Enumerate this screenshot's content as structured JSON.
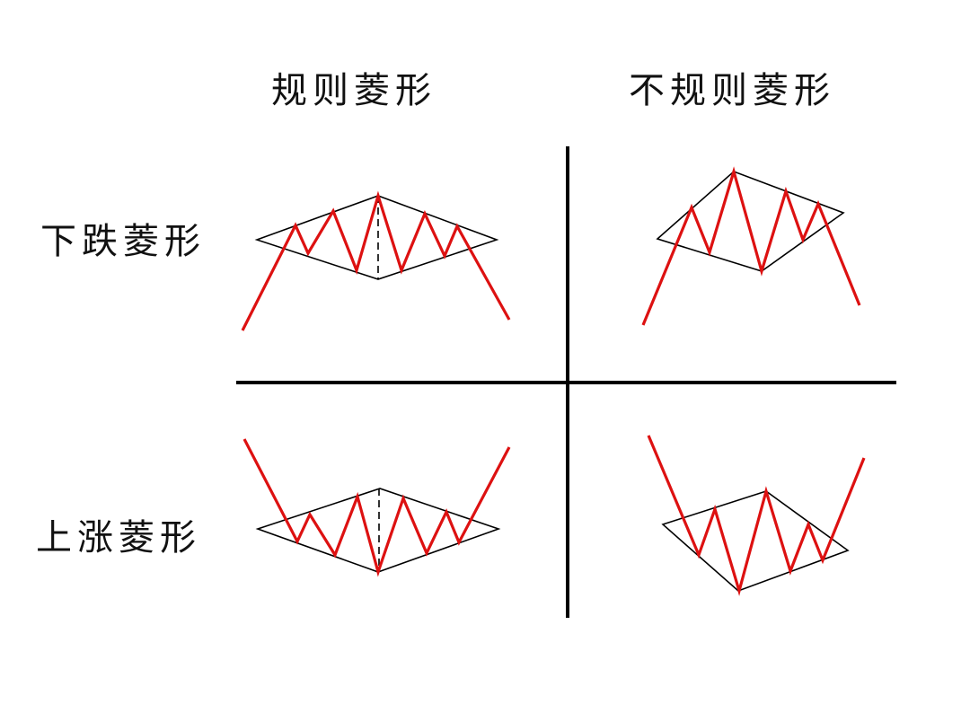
{
  "columns": [
    {
      "label": "规则菱形"
    },
    {
      "label": "不规则菱形"
    }
  ],
  "rows": [
    {
      "label": "下跌菱形"
    },
    {
      "label": "上涨菱形"
    }
  ],
  "colors": {
    "price_line": "#dd1111",
    "diamond_outline": "#000000",
    "divider": "#000000"
  }
}
